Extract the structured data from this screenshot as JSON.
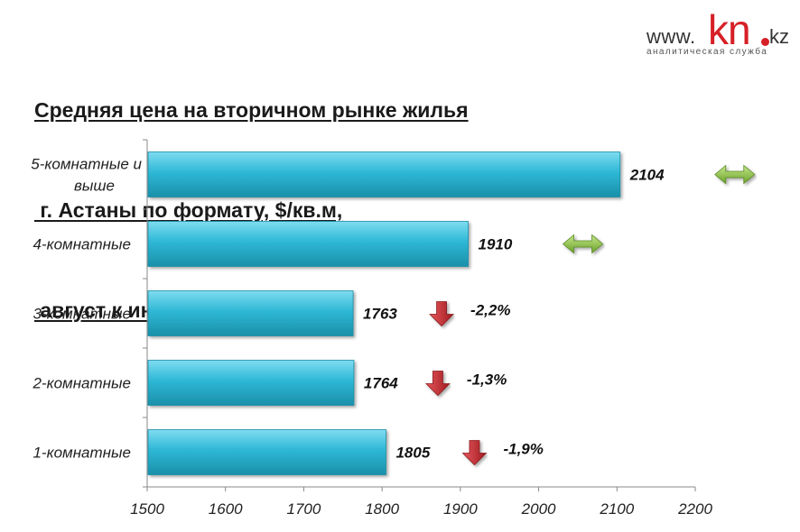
{
  "title_lines": [
    "Средняя цена на вторичном рынке жилья",
    " г. Астаны по формату, $/кв.м,",
    " август к июлю 2015 г."
  ],
  "logo": {
    "www": "www.",
    "kn": "kn",
    "kz": "kz",
    "tagline": "аналитическая служба"
  },
  "colors": {
    "bar": "#2eb8d6",
    "bar_dark": "#1a8fa8",
    "arrow_flat": "#8dc63f",
    "arrow_down": "#c9262c"
  },
  "chart_data": {
    "type": "bar",
    "orientation": "horizontal",
    "title": "Средняя цена на вторичном рынке жилья г. Астаны по формату, $/кв.м, август к июлю 2015 г.",
    "categories": [
      "5-комнатные и выше",
      "4-комнатные",
      "3-комнатные",
      "2-комнатные",
      "1-комнатные"
    ],
    "values": [
      2104,
      1910,
      1763,
      1764,
      1805
    ],
    "changes": [
      {
        "direction": "flat",
        "label": ""
      },
      {
        "direction": "flat",
        "label": ""
      },
      {
        "direction": "down",
        "label": "-2,2%"
      },
      {
        "direction": "down",
        "label": "-1,3%"
      },
      {
        "direction": "down",
        "label": "-1,9%"
      }
    ],
    "xlim": [
      1500,
      2200
    ],
    "xticks": [
      "1500",
      "1600",
      "1700",
      "1800",
      "1900",
      "2000",
      "2100",
      "2200"
    ],
    "grid": false,
    "legend": "none"
  }
}
